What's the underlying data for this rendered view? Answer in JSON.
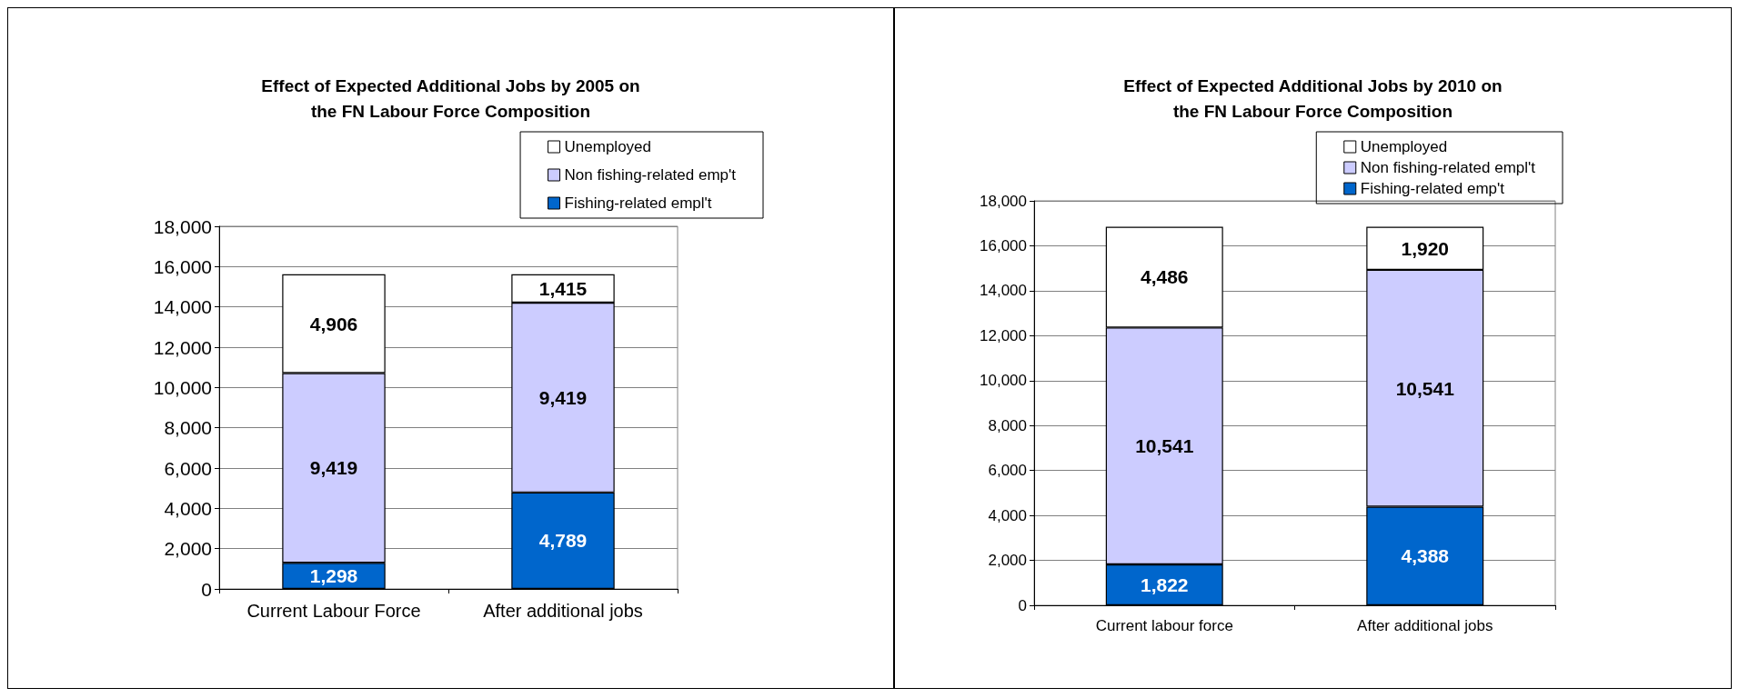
{
  "chart_data": [
    {
      "type": "bar",
      "stacked": true,
      "title": "Effect of Expected Additional Jobs by 2005 on\nthe FN Labour Force Composition",
      "categories": [
        "Current Labour Force",
        "After additional jobs"
      ],
      "series": [
        {
          "name": "Fishing-related empl't",
          "color": "#0066cc",
          "values": [
            1298,
            4789
          ],
          "value_labels": [
            "1,298",
            "4,789"
          ]
        },
        {
          "name": "Non fishing-related emp't",
          "color": "#ccccff",
          "values": [
            9419,
            9419
          ],
          "value_labels": [
            "9,419",
            "9,419"
          ]
        },
        {
          "name": "Unemployed",
          "color": "#ffffff",
          "values": [
            4906,
            1415
          ],
          "value_labels": [
            "4,906",
            "1,415"
          ]
        }
      ],
      "ylim": [
        0,
        18000
      ],
      "yticks": [
        0,
        {
          "value": 2000,
          "label": "2,000"
        },
        {
          "value": 4000,
          "label": "4,000"
        },
        {
          "value": 6000,
          "label": "6,000"
        },
        {
          "value": 8000,
          "label": "8,000"
        },
        {
          "value": 10000,
          "label": "10,000"
        },
        {
          "value": 12000,
          "label": "12,000"
        },
        {
          "value": 14000,
          "label": "14,000"
        },
        {
          "value": 16000,
          "label": "16,000"
        },
        {
          "value": 18000,
          "label": "18,000"
        }
      ],
      "grid": "y",
      "legend": "top right"
    },
    {
      "type": "bar",
      "stacked": true,
      "title": "Effect of Expected Additional Jobs by 2010 on\nthe FN Labour Force Composition",
      "categories": [
        "Current labour force",
        "After additional jobs"
      ],
      "series": [
        {
          "name": "Fishing-related emp't",
          "color": "#0066cc",
          "values": [
            1822,
            4388
          ],
          "value_labels": [
            "1,822",
            "4,388"
          ]
        },
        {
          "name": "Non fishing-related empl't",
          "color": "#ccccff",
          "values": [
            10541,
            10541
          ],
          "value_labels": [
            "10,541",
            "10,541"
          ]
        },
        {
          "name": "Unemployed",
          "color": "#ffffff",
          "values": [
            4486,
            1920
          ],
          "value_labels": [
            "4,486",
            "1,920"
          ]
        }
      ],
      "ylim": [
        0,
        18000
      ],
      "yticks": [
        0,
        {
          "value": 2000,
          "label": "2,000"
        },
        {
          "value": 4000,
          "label": "4,000"
        },
        {
          "value": 6000,
          "label": "6,000"
        },
        {
          "value": 8000,
          "label": "8,000"
        },
        {
          "value": 10000,
          "label": "10,000"
        },
        {
          "value": 12000,
          "label": "12,000"
        },
        {
          "value": 14000,
          "label": "14,000"
        },
        {
          "value": 16000,
          "label": "16,000"
        },
        {
          "value": 18000,
          "label": "18,000"
        }
      ],
      "grid": "y",
      "legend": "top right"
    }
  ]
}
